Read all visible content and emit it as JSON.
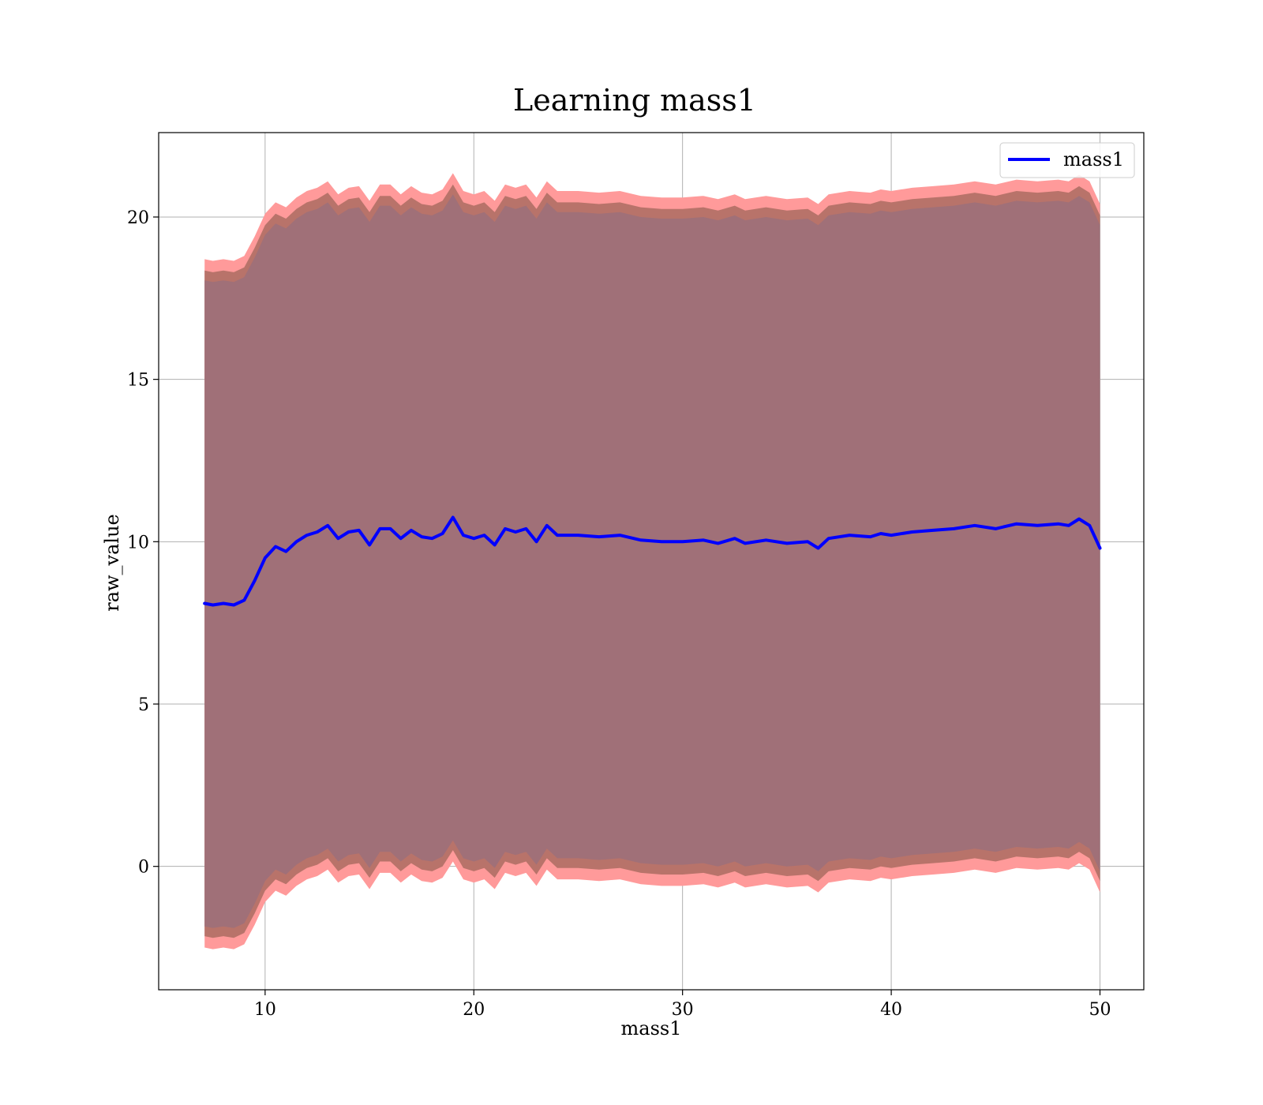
{
  "chart_data": {
    "type": "line",
    "title": "Learning mass1",
    "xlabel": "mass1",
    "ylabel": "raw_value",
    "xlim": [
      4.9,
      52.1
    ],
    "ylim": [
      -3.8,
      22.6
    ],
    "xticks": [
      10,
      20,
      30,
      40,
      50
    ],
    "yticks": [
      0,
      5,
      10,
      15,
      20
    ],
    "grid": true,
    "legend_position": "top-right",
    "colors": {
      "line": "#0000ff",
      "band_outer": "#ff9a9a",
      "band_middle": "#b8736a",
      "band_inner": "#a07078",
      "grid": "#b0b0b0",
      "axes": "#000000"
    },
    "series": [
      {
        "name": "mass1",
        "x": [
          7.1,
          7.5,
          8.0,
          8.5,
          9.0,
          9.5,
          10.0,
          10.5,
          11.0,
          11.5,
          12.0,
          12.5,
          13.0,
          13.5,
          14.0,
          14.5,
          15.0,
          15.5,
          16.0,
          16.5,
          17.0,
          17.5,
          18.0,
          18.5,
          19.0,
          19.5,
          20.0,
          20.5,
          21.0,
          21.5,
          22.0,
          22.5,
          23.0,
          23.5,
          24.0,
          25.0,
          26.0,
          27.0,
          28.0,
          29.0,
          30.0,
          31.0,
          31.7,
          32.5,
          33.0,
          34.0,
          35.0,
          36.0,
          36.5,
          37.0,
          38.0,
          39.0,
          39.5,
          40.0,
          41.0,
          42.0,
          43.0,
          44.0,
          45.0,
          46.0,
          47.0,
          48.0,
          48.5,
          49.0,
          49.5,
          50.0
        ],
        "y": [
          8.1,
          8.05,
          8.1,
          8.05,
          8.2,
          8.8,
          9.5,
          9.85,
          9.7,
          10.0,
          10.2,
          10.3,
          10.5,
          10.1,
          10.3,
          10.35,
          9.9,
          10.4,
          10.4,
          10.1,
          10.35,
          10.15,
          10.1,
          10.25,
          10.75,
          10.2,
          10.1,
          10.2,
          9.9,
          10.4,
          10.3,
          10.4,
          10.0,
          10.5,
          10.2,
          10.2,
          10.15,
          10.2,
          10.05,
          10.0,
          10.0,
          10.05,
          9.95,
          10.1,
          9.95,
          10.05,
          9.95,
          10.0,
          9.8,
          10.1,
          10.2,
          10.15,
          10.25,
          10.2,
          10.3,
          10.35,
          10.4,
          10.5,
          10.4,
          10.55,
          10.5,
          10.55,
          10.5,
          10.7,
          10.5,
          9.8
        ]
      }
    ],
    "bands": [
      {
        "color": "band_outer",
        "offset_upper": 10.6,
        "offset_lower": -10.6
      },
      {
        "color": "band_middle",
        "offset_upper": 10.25,
        "offset_lower": -10.25
      },
      {
        "color": "band_inner",
        "offset_upper": 9.95,
        "offset_lower": -9.95
      }
    ]
  }
}
